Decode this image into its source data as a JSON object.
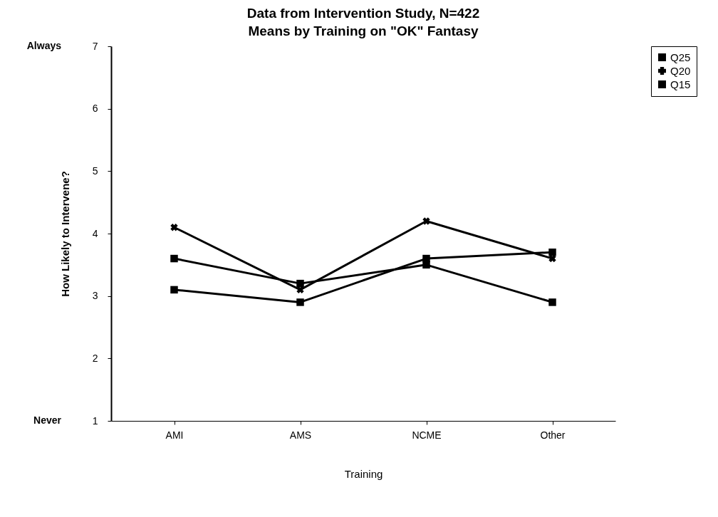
{
  "chart_data": {
    "type": "line",
    "title": "Data from Intervention Study, N=422",
    "subtitle": "Means by Training on \"OK\" Fantasy",
    "xlabel": "Training",
    "ylabel": "How Likely to Intervene?",
    "categories": [
      "AMI",
      "AMS",
      "NCME",
      "Other"
    ],
    "series": [
      {
        "name": "Q25",
        "color": "#000000",
        "marker": "square",
        "values": [
          3.6,
          3.2,
          3.5,
          2.9
        ]
      },
      {
        "name": "Q20",
        "color": "#000000",
        "marker": "cross",
        "values": [
          4.1,
          3.1,
          4.2,
          3.6
        ]
      },
      {
        "name": "Q15",
        "color": "#000000",
        "marker": "square",
        "values": [
          3.1,
          2.9,
          3.6,
          3.7
        ]
      }
    ],
    "ylim": [
      1,
      7
    ],
    "yticks": [
      1,
      2,
      3,
      4,
      5,
      6,
      7
    ],
    "annotations": [
      "Always",
      "Never"
    ],
    "grid": false,
    "legend": "right",
    "line_style": "solid"
  }
}
